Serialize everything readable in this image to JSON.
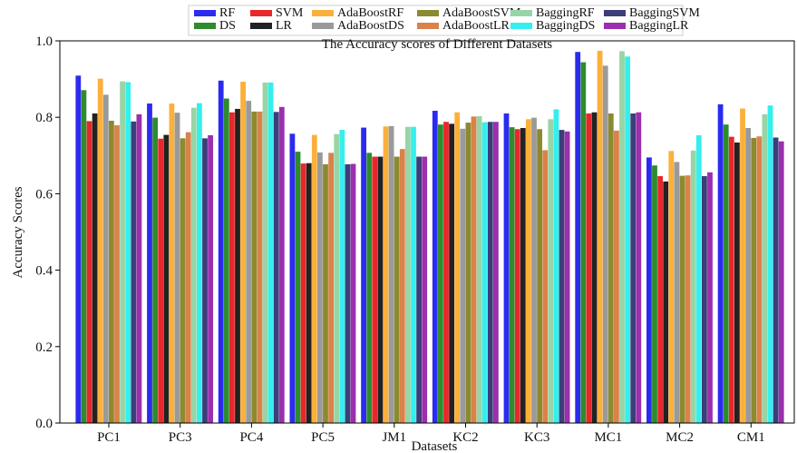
{
  "chart_data": {
    "type": "bar",
    "title": "The Accuracy scores of Different Datasets",
    "xlabel": "Datasets",
    "ylabel": "Accuracy Scores",
    "ylim": [
      0.0,
      1.0
    ],
    "yticks": [
      "0.0",
      "0.2",
      "0.4",
      "0.6",
      "0.8",
      "1.0"
    ],
    "grid": false,
    "legend_placement": "top-center",
    "categories": [
      "PC1",
      "PC3",
      "PC4",
      "PC5",
      "JM1",
      "KC2",
      "KC3",
      "MC1",
      "MC2",
      "CM1"
    ],
    "series": [
      {
        "name": "RF",
        "color": "#2b2bf0",
        "values": [
          0.909,
          0.836,
          0.896,
          0.757,
          0.773,
          0.817,
          0.81,
          0.971,
          0.695,
          0.834
        ]
      },
      {
        "name": "DS",
        "color": "#2e8b2e",
        "values": [
          0.871,
          0.799,
          0.849,
          0.71,
          0.707,
          0.781,
          0.774,
          0.944,
          0.674,
          0.781
        ]
      },
      {
        "name": "SVM",
        "color": "#e8272a",
        "values": [
          0.79,
          0.744,
          0.813,
          0.679,
          0.697,
          0.788,
          0.769,
          0.81,
          0.646,
          0.749
        ]
      },
      {
        "name": "LR",
        "color": "#222222",
        "values": [
          0.81,
          0.754,
          0.822,
          0.68,
          0.697,
          0.783,
          0.772,
          0.813,
          0.632,
          0.734
        ]
      },
      {
        "name": "AdaBoostRF",
        "color": "#fbb03b",
        "values": [
          0.901,
          0.836,
          0.893,
          0.754,
          0.776,
          0.813,
          0.795,
          0.974,
          0.712,
          0.823
        ]
      },
      {
        "name": "AdaBoostDS",
        "color": "#9a9a9a",
        "values": [
          0.859,
          0.812,
          0.843,
          0.708,
          0.777,
          0.77,
          0.799,
          0.935,
          0.683,
          0.772
        ]
      },
      {
        "name": "AdaBoostSVM",
        "color": "#8c8a2e",
        "values": [
          0.791,
          0.745,
          0.815,
          0.677,
          0.697,
          0.786,
          0.769,
          0.81,
          0.647,
          0.746
        ]
      },
      {
        "name": "AdaBoostLR",
        "color": "#d9824a",
        "values": [
          0.779,
          0.761,
          0.815,
          0.707,
          0.717,
          0.802,
          0.714,
          0.765,
          0.648,
          0.75
        ]
      },
      {
        "name": "BaggingRF",
        "color": "#99d4a6",
        "values": [
          0.894,
          0.825,
          0.891,
          0.756,
          0.775,
          0.803,
          0.795,
          0.973,
          0.713,
          0.808
        ]
      },
      {
        "name": "BaggingDS",
        "color": "#33f0ee",
        "values": [
          0.892,
          0.837,
          0.891,
          0.767,
          0.775,
          0.787,
          0.821,
          0.959,
          0.753,
          0.831
        ]
      },
      {
        "name": "BaggingSVM",
        "color": "#3d3d7a",
        "values": [
          0.789,
          0.745,
          0.814,
          0.677,
          0.697,
          0.788,
          0.767,
          0.81,
          0.646,
          0.747
        ]
      },
      {
        "name": "BaggingLR",
        "color": "#9b2fae",
        "values": [
          0.808,
          0.753,
          0.827,
          0.678,
          0.697,
          0.788,
          0.763,
          0.813,
          0.656,
          0.737
        ]
      }
    ]
  }
}
